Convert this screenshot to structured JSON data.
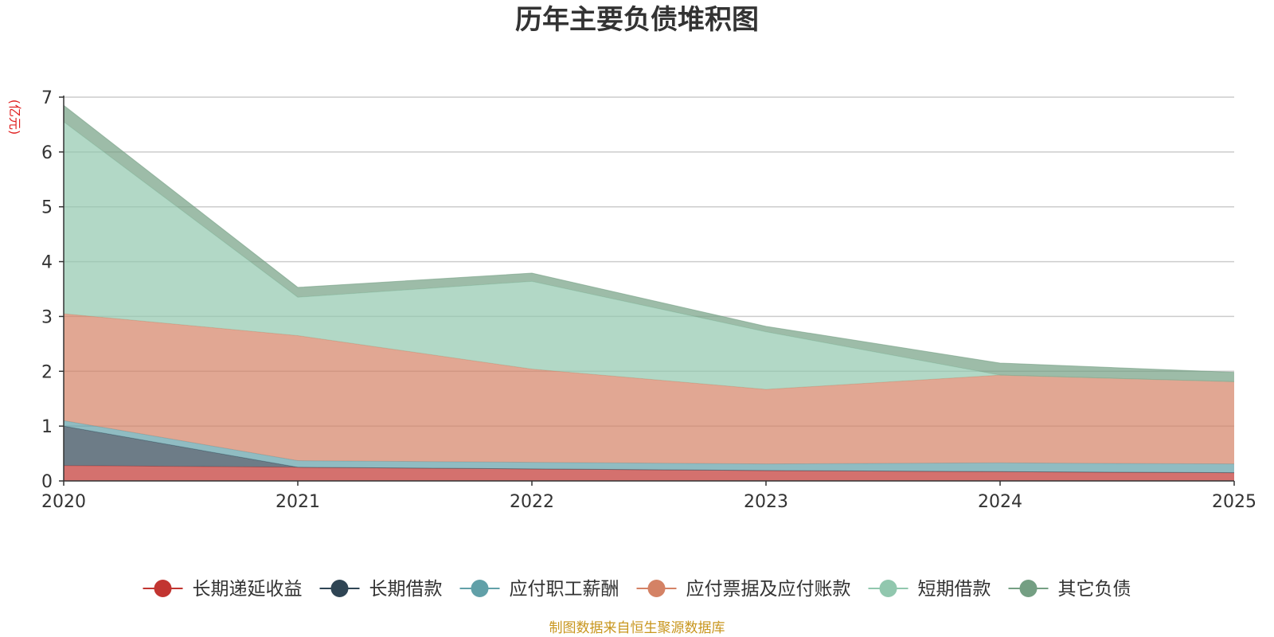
{
  "chart_data": {
    "type": "area",
    "title": "历年主要负债堆积图",
    "ylabel": "(亿元)",
    "xlabel": "",
    "x": [
      "2020",
      "2021",
      "2022",
      "2023",
      "2024",
      "2025"
    ],
    "ylim": [
      0,
      7
    ],
    "yticks": [
      "0",
      "1",
      "2",
      "3",
      "4",
      "5",
      "6",
      "7"
    ],
    "grid": true,
    "legend_position": "bottom",
    "stacked": true,
    "series": [
      {
        "name": "长期递延收益",
        "color": "#c23531",
        "values": [
          0.28,
          0.25,
          0.22,
          0.19,
          0.17,
          0.15
        ]
      },
      {
        "name": "长期借款",
        "color": "#2f4554",
        "values": [
          0.72,
          0.0,
          0.0,
          0.0,
          0.0,
          0.0
        ]
      },
      {
        "name": "应付职工薪酬",
        "color": "#61a0a8",
        "values": [
          0.1,
          0.12,
          0.12,
          0.12,
          0.16,
          0.16
        ]
      },
      {
        "name": "应付票据及应付账款",
        "color": "#d48265",
        "values": [
          1.95,
          2.28,
          1.7,
          1.36,
          1.6,
          1.5
        ]
      },
      {
        "name": "短期借款",
        "color": "#91c7ae",
        "values": [
          3.5,
          0.7,
          1.6,
          1.05,
          0.0,
          0.0
        ]
      },
      {
        "name": "其它负债",
        "color": "#749f83",
        "values": [
          0.3,
          0.18,
          0.15,
          0.1,
          0.22,
          0.17
        ]
      }
    ]
  },
  "footer": {
    "source": "制图数据来自恒生聚源数据库"
  }
}
